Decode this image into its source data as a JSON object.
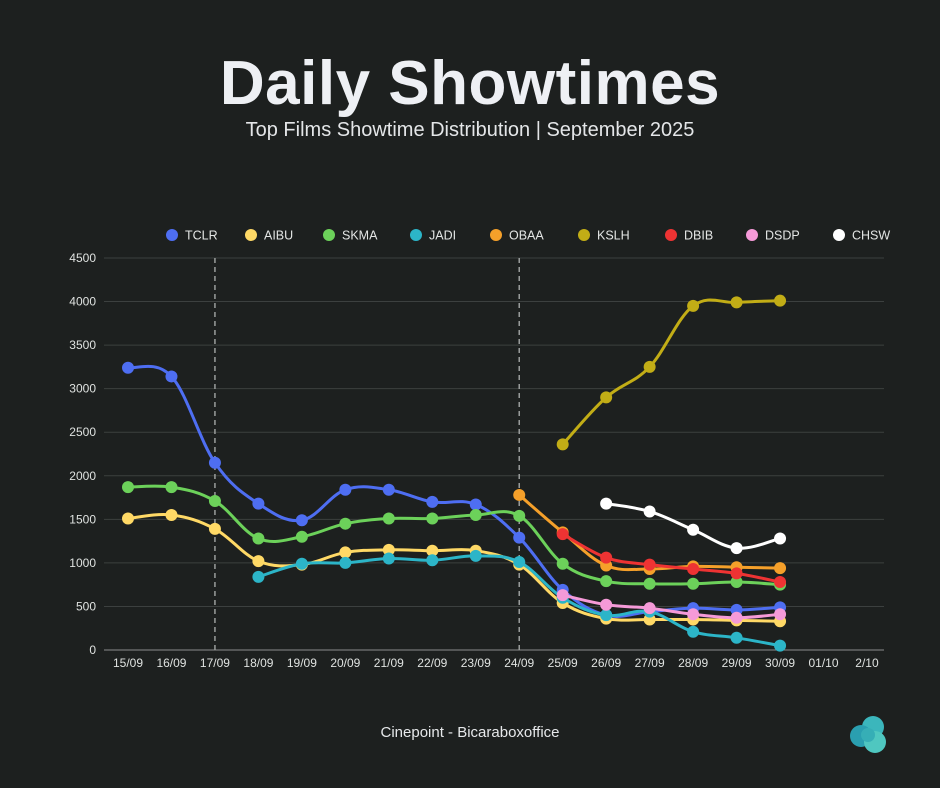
{
  "header": {
    "title": "Daily Showtimes",
    "subtitle": "Top Films Showtime Distribution | September 2025"
  },
  "footer": {
    "credit": "Cinepoint - Bicaraboxoffice"
  },
  "logo": {
    "icon": "cloud-logo-icon",
    "colors": [
      "#2a9fb0",
      "#4fc7c0"
    ]
  },
  "chart_data": {
    "type": "line",
    "title": "Daily Showtimes",
    "subtitle": "Top Films Showtime Distribution | September 2025",
    "xlabel": "",
    "ylabel": "",
    "categories": [
      "15/09",
      "16/09",
      "17/09",
      "18/09",
      "19/09",
      "20/09",
      "21/09",
      "22/09",
      "23/09",
      "24/09",
      "25/09",
      "26/09",
      "27/09",
      "28/09",
      "29/09",
      "30/09",
      "01/10",
      "2/10"
    ],
    "ylim": [
      0,
      4500
    ],
    "yticks": [
      0,
      500,
      1000,
      1500,
      2000,
      2500,
      3000,
      3500,
      4000,
      4500
    ],
    "grid": true,
    "legend_position": "top",
    "vertical_markers": [
      "17/09",
      "24/09"
    ],
    "series": [
      {
        "name": "TCLR",
        "color": "#4e6ef2",
        "values": [
          3240,
          3140,
          2150,
          1680,
          1490,
          1840,
          1840,
          1700,
          1670,
          1290,
          690,
          400,
          440,
          480,
          460,
          490,
          null,
          null
        ]
      },
      {
        "name": "AIBU",
        "color": "#ffd966",
        "values": [
          1510,
          1550,
          1390,
          1020,
          980,
          1120,
          1150,
          1140,
          1140,
          980,
          540,
          360,
          350,
          350,
          340,
          330,
          null,
          null
        ]
      },
      {
        "name": "SKMA",
        "color": "#6cd15a",
        "values": [
          1870,
          1870,
          1710,
          1280,
          1300,
          1450,
          1510,
          1510,
          1550,
          1540,
          990,
          790,
          760,
          760,
          780,
          750,
          null,
          null
        ]
      },
      {
        "name": "JADI",
        "color": "#2cb5c8",
        "values": [
          null,
          null,
          null,
          840,
          990,
          1000,
          1050,
          1030,
          1080,
          1010,
          600,
          400,
          440,
          210,
          140,
          50,
          null,
          null
        ]
      },
      {
        "name": "OBAA",
        "color": "#f5a02a",
        "values": [
          null,
          null,
          null,
          null,
          null,
          null,
          null,
          null,
          null,
          1780,
          1350,
          970,
          930,
          960,
          950,
          940,
          null,
          null
        ]
      },
      {
        "name": "KSLH",
        "color": "#c2ad16",
        "values": [
          null,
          null,
          null,
          null,
          null,
          null,
          null,
          null,
          null,
          null,
          2360,
          2900,
          3250,
          3950,
          3990,
          4010,
          null,
          null
        ]
      },
      {
        "name": "DBIB",
        "color": "#ee3333",
        "values": [
          null,
          null,
          null,
          null,
          null,
          null,
          null,
          null,
          null,
          null,
          1330,
          1060,
          980,
          930,
          880,
          780,
          null,
          null
        ]
      },
      {
        "name": "DSDP",
        "color": "#f59ad8",
        "values": [
          null,
          null,
          null,
          null,
          null,
          null,
          null,
          null,
          null,
          null,
          630,
          520,
          480,
          410,
          370,
          410,
          null,
          null
        ]
      },
      {
        "name": "CHSW",
        "color": "#ffffff",
        "values": [
          null,
          null,
          null,
          null,
          null,
          null,
          null,
          null,
          null,
          null,
          null,
          1680,
          1590,
          1380,
          1170,
          1280,
          null,
          null
        ]
      }
    ]
  }
}
